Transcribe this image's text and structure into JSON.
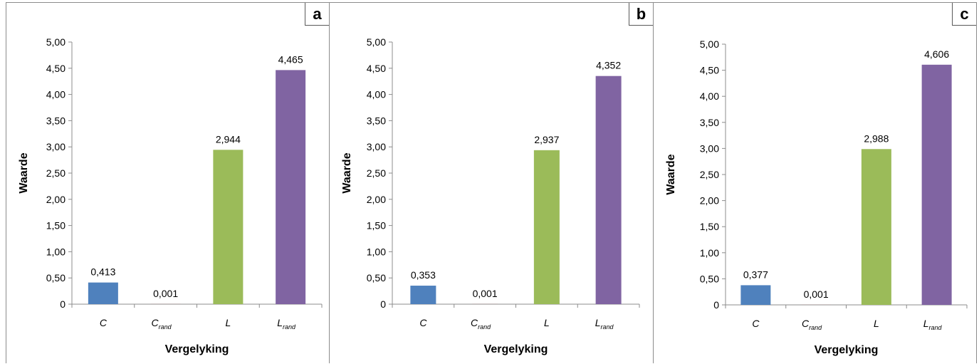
{
  "chart_data": [
    {
      "panel_label": "a",
      "type": "bar",
      "categories": [
        {
          "base": "C",
          "sub": ""
        },
        {
          "base": "C",
          "sub": "rand"
        },
        {
          "base": "L",
          "sub": ""
        },
        {
          "base": "L",
          "sub": "rand"
        }
      ],
      "values": [
        0.413,
        0.001,
        2.944,
        4.465
      ],
      "value_labels": [
        "0,413",
        "0,001",
        "2,944",
        "4,465"
      ],
      "colors": [
        "#4f81bd",
        "#c0504d",
        "#9bbb59",
        "#8064a2"
      ],
      "xlabel": "Vergelyking",
      "ylabel": "Waarde",
      "ylim": [
        0,
        5
      ],
      "yticks": [
        0,
        0.5,
        1,
        1.5,
        2,
        2.5,
        3,
        3.5,
        4,
        4.5,
        5
      ],
      "ytick_labels": [
        "0",
        "0,50",
        "1,00",
        "1,50",
        "2,00",
        "2,50",
        "3,00",
        "3,50",
        "4,00",
        "4,50",
        "5,00"
      ],
      "grid": false
    },
    {
      "panel_label": "b",
      "type": "bar",
      "categories": [
        {
          "base": "C",
          "sub": ""
        },
        {
          "base": "C",
          "sub": "rand"
        },
        {
          "base": "L",
          "sub": ""
        },
        {
          "base": "L",
          "sub": "rand"
        }
      ],
      "values": [
        0.353,
        0.001,
        2.937,
        4.352
      ],
      "value_labels": [
        "0,353",
        "0,001",
        "2,937",
        "4,352"
      ],
      "colors": [
        "#4f81bd",
        "#c0504d",
        "#9bbb59",
        "#8064a2"
      ],
      "xlabel": "Vergelyking",
      "ylabel": "Waarde",
      "ylim": [
        0,
        5
      ],
      "yticks": [
        0,
        0.5,
        1,
        1.5,
        2,
        2.5,
        3,
        3.5,
        4,
        4.5,
        5
      ],
      "ytick_labels": [
        "0",
        "0,50",
        "1,00",
        "1,50",
        "2,00",
        "2,50",
        "3,00",
        "3,50",
        "4,00",
        "4,50",
        "5,00"
      ],
      "grid": false
    },
    {
      "panel_label": "c",
      "type": "bar",
      "categories": [
        {
          "base": "C",
          "sub": ""
        },
        {
          "base": "C",
          "sub": "rand"
        },
        {
          "base": "L",
          "sub": ""
        },
        {
          "base": "L",
          "sub": "rand"
        }
      ],
      "values": [
        0.377,
        0.001,
        2.988,
        4.606
      ],
      "value_labels": [
        "0,377",
        "0,001",
        "2,988",
        "4,606"
      ],
      "colors": [
        "#4f81bd",
        "#c0504d",
        "#9bbb59",
        "#8064a2"
      ],
      "xlabel": "Vergelyking",
      "ylabel": "Waarde",
      "ylim": [
        0,
        5
      ],
      "yticks": [
        0,
        0.5,
        1,
        1.5,
        2,
        2.5,
        3,
        3.5,
        4,
        4.5,
        5
      ],
      "ytick_labels": [
        "0",
        "0,50",
        "1,00",
        "1,50",
        "2,00",
        "2,50",
        "3,00",
        "3,50",
        "4,00",
        "4,50",
        "5,00"
      ],
      "grid": false
    }
  ]
}
